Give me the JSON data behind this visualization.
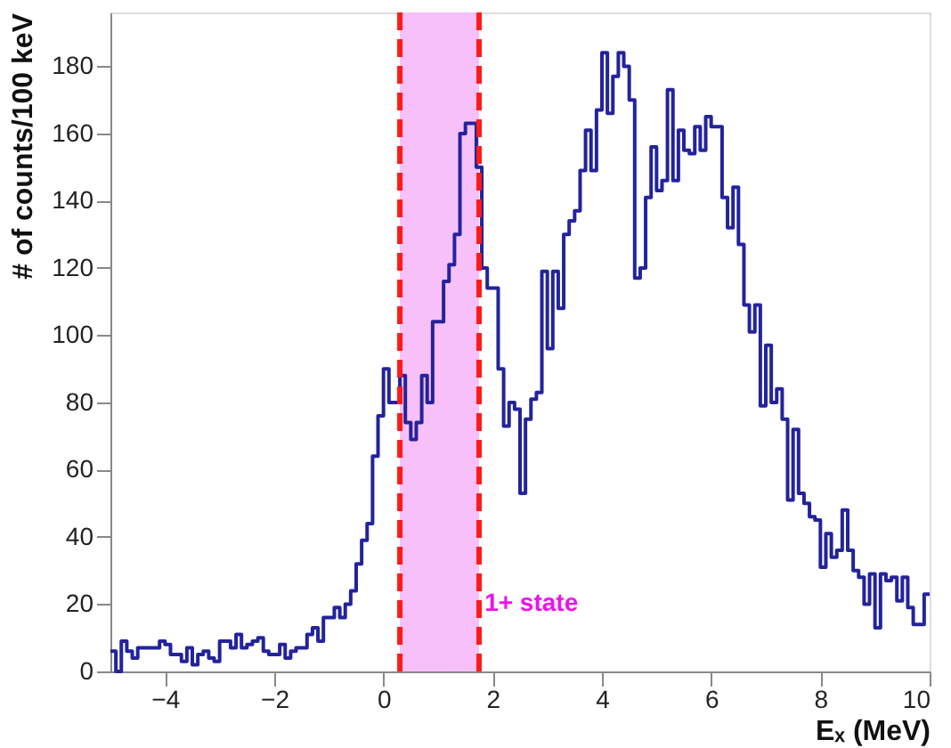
{
  "chart_data": {
    "type": "histogram",
    "xlabel": "Eₓ (MeV)",
    "ylabel": "# of counts/100 keV",
    "bins": [
      -5.0,
      -4.9,
      -4.8,
      -4.7,
      -4.6,
      -4.5,
      -4.4,
      -4.3,
      -4.2,
      -4.1,
      -4.0,
      -3.9,
      -3.8,
      -3.7,
      -3.6,
      -3.5,
      -3.4,
      -3.3,
      -3.2,
      -3.1,
      -3.0,
      -2.9,
      -2.8,
      -2.7,
      -2.6,
      -2.5,
      -2.4,
      -2.3,
      -2.2,
      -2.1,
      -2.0,
      -1.9,
      -1.8,
      -1.7,
      -1.6,
      -1.5,
      -1.4,
      -1.3,
      -1.2,
      -1.1,
      -1.0,
      -0.9,
      -0.8,
      -0.7,
      -0.6,
      -0.5,
      -0.4,
      -0.3,
      -0.2,
      -0.1,
      0.0,
      0.1,
      0.2,
      0.3,
      0.4,
      0.5,
      0.6,
      0.7,
      0.8,
      0.9,
      1.0,
      1.1,
      1.2,
      1.3,
      1.4,
      1.5,
      1.6,
      1.7,
      1.8,
      1.9,
      2.0,
      2.1,
      2.2,
      2.3,
      2.4,
      2.5,
      2.6,
      2.7,
      2.8,
      2.9,
      3.0,
      3.1,
      3.2,
      3.3,
      3.4,
      3.5,
      3.6,
      3.7,
      3.8,
      3.9,
      4.0,
      4.1,
      4.2,
      4.3,
      4.4,
      4.5,
      4.6,
      4.7,
      4.8,
      4.9,
      5.0,
      5.1,
      5.2,
      5.3,
      5.4,
      5.5,
      5.6,
      5.7,
      5.8,
      5.9,
      6.0,
      6.1,
      6.2,
      6.3,
      6.4,
      6.5,
      6.6,
      6.7,
      6.8,
      6.9,
      7.0,
      7.1,
      7.2,
      7.3,
      7.4,
      7.5,
      7.6,
      7.7,
      7.8,
      7.9,
      8.0,
      8.1,
      8.2,
      8.3,
      8.4,
      8.5,
      8.6,
      8.7,
      8.8,
      8.9,
      9.0,
      9.1,
      9.2,
      9.3,
      9.4,
      9.5,
      9.6,
      9.7,
      9.8,
      9.9,
      10.0
    ],
    "values": [
      6,
      0,
      9,
      6,
      4,
      7,
      7,
      7,
      7,
      9,
      8,
      5,
      5,
      3,
      7,
      2,
      5,
      6,
      4,
      3,
      9,
      9,
      7,
      11,
      7,
      8,
      9,
      10,
      6,
      5,
      5,
      8,
      4,
      6,
      7,
      7,
      11,
      13,
      9,
      16,
      16,
      19,
      16,
      20,
      24,
      32,
      39,
      44,
      64,
      76,
      90,
      80,
      80,
      88,
      74,
      69,
      74,
      88,
      80,
      104,
      104,
      116,
      121,
      130,
      160,
      163,
      163,
      150,
      120,
      114,
      114,
      90,
      73,
      80,
      78,
      53,
      75,
      81,
      83,
      119,
      96,
      119,
      108,
      130,
      134,
      137,
      149,
      161,
      149,
      167,
      184,
      166,
      177,
      184,
      180,
      170,
      117,
      120,
      141,
      156,
      143,
      146,
      173,
      146,
      161,
      155,
      154,
      162,
      155,
      165,
      162,
      162,
      141,
      132,
      144,
      127,
      109,
      101,
      109,
      79,
      97,
      80,
      84,
      75,
      51,
      72,
      53,
      50,
      46,
      45,
      31,
      41,
      34,
      36,
      48,
      36,
      30,
      28,
      20,
      29,
      13,
      29,
      27,
      28,
      21,
      28,
      19,
      14,
      14,
      23
    ],
    "color": "#23239c",
    "xlim": [
      -5,
      10
    ],
    "xticks": [
      -4,
      -2,
      0,
      2,
      4,
      6,
      8,
      10
    ],
    "ylim": [
      0,
      196
    ],
    "yticks": [
      0,
      20,
      40,
      60,
      80,
      100,
      120,
      140,
      160,
      180
    ],
    "bands": [
      {
        "axis": "x",
        "from": 0.3,
        "to": 1.75,
        "color": "#f8c0f8"
      }
    ],
    "ref_lines": [
      {
        "axis": "x",
        "value": 0.3,
        "color": "#ff1a1a",
        "line_style": "dashed"
      },
      {
        "axis": "x",
        "value": 1.75,
        "color": "#ff1a1a",
        "line_style": "dashed"
      }
    ],
    "annotations": [
      {
        "text": "1+ state",
        "x": 1.85,
        "y": 20
      }
    ]
  }
}
